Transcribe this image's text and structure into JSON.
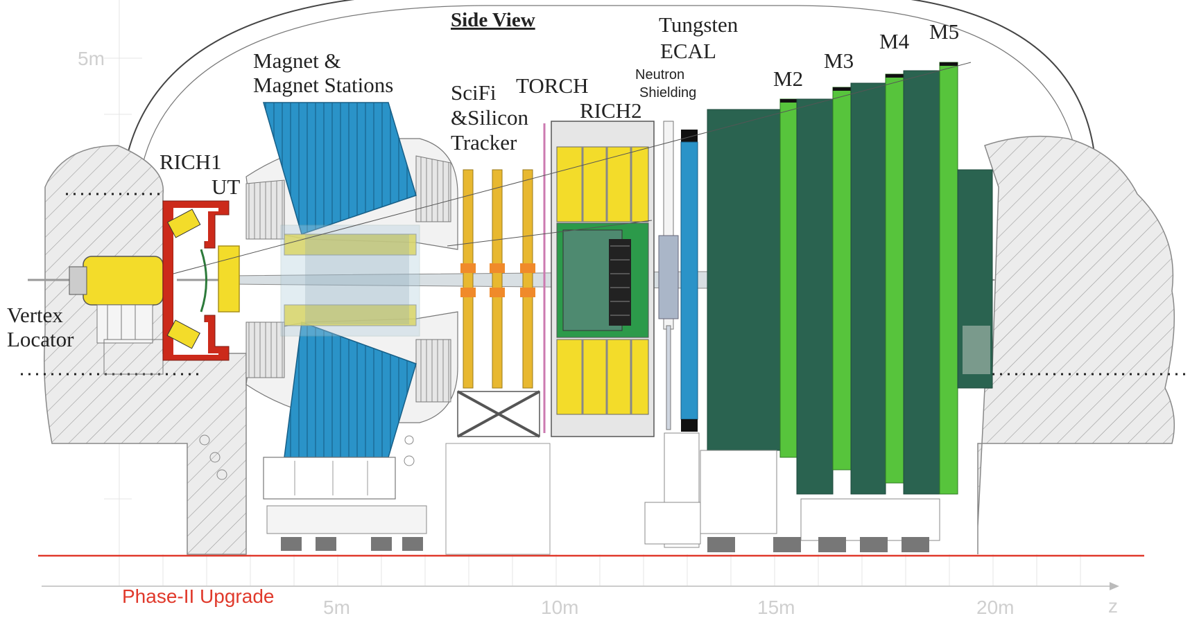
{
  "title": "Side View",
  "upgrade_label": "Phase-II Upgrade",
  "axis": {
    "y_tick": "5m",
    "x_ticks": [
      "5m",
      "10m",
      "15m",
      "20m"
    ],
    "x_label": "z"
  },
  "detectors": {
    "vertex_locator": [
      "Vertex",
      "Locator"
    ],
    "rich1": "RICH1",
    "ut": "UT",
    "magnet": [
      "Magnet &",
      "Magnet Stations"
    ],
    "scifi": [
      "SciFi",
      "&Silicon",
      "Tracker"
    ],
    "torch": "TORCH",
    "rich2": "RICH2",
    "neutron": [
      "Neutron",
      "Shielding"
    ],
    "ecal": [
      "Tungsten",
      "ECAL"
    ],
    "muon": [
      "M2",
      "M3",
      "M4",
      "M5"
    ]
  },
  "colors": {
    "dark_green": "#2a6350",
    "light_green": "#57c43c",
    "blue": "#2a93c8",
    "yellow": "#f3dc2a",
    "red_frame": "#cc2a1a",
    "phase_red": "#e0392b",
    "hatch_gray": "#ececec"
  }
}
